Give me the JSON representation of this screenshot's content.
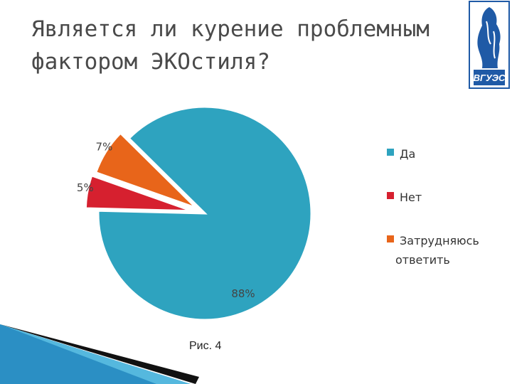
{
  "slide": {
    "title": "Является ли курение проблемным\nфактором ЭКОстиля?",
    "caption": "Рис. 4"
  },
  "logo": {
    "text": "ВГУЭС"
  },
  "chart_data": {
    "type": "pie",
    "title": "",
    "slices": [
      {
        "label": "Да",
        "value": 88,
        "color": "#2ea3bf"
      },
      {
        "label": "Нет",
        "value": 5,
        "color": "#d6202f"
      },
      {
        "label": "Затрудняюсь ответить",
        "value": 7,
        "color": "#e8651a"
      }
    ],
    "data_labels": [
      "88%",
      "5%",
      "7%"
    ],
    "legend_position": "right",
    "exploded": true
  }
}
